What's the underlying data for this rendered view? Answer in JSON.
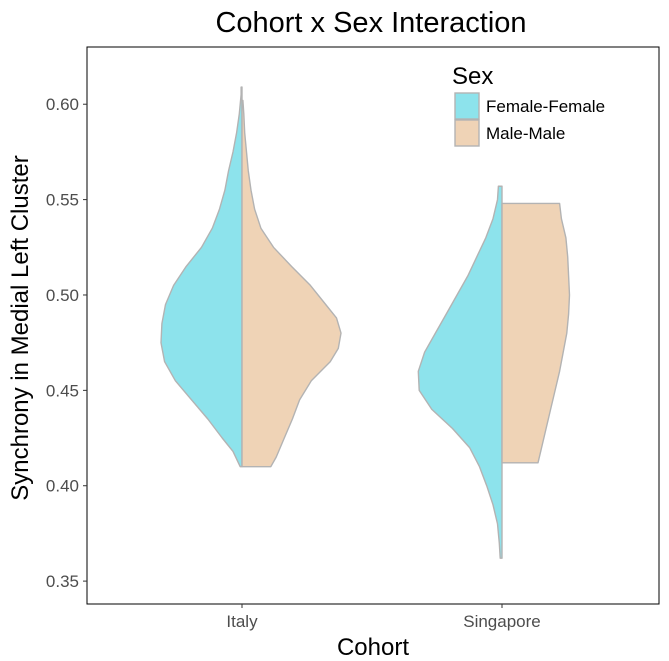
{
  "chart_data": {
    "type": "split-violin",
    "title": "Cohort x Sex Interaction",
    "xlabel": "Cohort",
    "ylabel": "Synchrony in Medial Left Cluster",
    "categories": [
      "Italy",
      "Singapore"
    ],
    "ylim": [
      0.338,
      0.63
    ],
    "yticks": [
      0.35,
      0.4,
      0.45,
      0.5,
      0.55,
      0.6
    ],
    "ytick_labels": [
      "0.35",
      "0.40",
      "0.45",
      "0.50",
      "0.55",
      "0.60"
    ],
    "grid": false,
    "legend": {
      "title": "Sex",
      "position": "top-right",
      "entries": [
        "Female-Female",
        "Male-Male"
      ]
    },
    "series": [
      {
        "name": "Female-Female",
        "color": "#8de3ec",
        "side": "left",
        "groups": [
          {
            "category": "Italy",
            "min": 0.41,
            "max": 0.609,
            "profile": [
              [
                0.41,
                0.02
              ],
              [
                0.418,
                0.1
              ],
              [
                0.425,
                0.22
              ],
              [
                0.435,
                0.38
              ],
              [
                0.445,
                0.56
              ],
              [
                0.455,
                0.74
              ],
              [
                0.465,
                0.86
              ],
              [
                0.475,
                0.9
              ],
              [
                0.485,
                0.89
              ],
              [
                0.495,
                0.85
              ],
              [
                0.505,
                0.76
              ],
              [
                0.515,
                0.62
              ],
              [
                0.525,
                0.45
              ],
              [
                0.535,
                0.33
              ],
              [
                0.545,
                0.25
              ],
              [
                0.555,
                0.19
              ],
              [
                0.565,
                0.15
              ],
              [
                0.575,
                0.1
              ],
              [
                0.585,
                0.06
              ],
              [
                0.595,
                0.03
              ],
              [
                0.605,
                0.01
              ],
              [
                0.609,
                0.01
              ]
            ]
          },
          {
            "category": "Singapore",
            "min": 0.362,
            "max": 0.557,
            "profile": [
              [
                0.362,
                0.02
              ],
              [
                0.37,
                0.03
              ],
              [
                0.38,
                0.05
              ],
              [
                0.39,
                0.1
              ],
              [
                0.4,
                0.17
              ],
              [
                0.41,
                0.25
              ],
              [
                0.42,
                0.36
              ],
              [
                0.43,
                0.55
              ],
              [
                0.44,
                0.78
              ],
              [
                0.45,
                0.92
              ],
              [
                0.46,
                0.93
              ],
              [
                0.47,
                0.86
              ],
              [
                0.48,
                0.74
              ],
              [
                0.49,
                0.62
              ],
              [
                0.5,
                0.5
              ],
              [
                0.51,
                0.38
              ],
              [
                0.52,
                0.28
              ],
              [
                0.53,
                0.18
              ],
              [
                0.54,
                0.1
              ],
              [
                0.55,
                0.05
              ],
              [
                0.557,
                0.04
              ]
            ]
          }
        ]
      },
      {
        "name": "Male-Male",
        "color": "#efd3b6",
        "side": "right",
        "groups": [
          {
            "category": "Italy",
            "min": 0.41,
            "max": 0.602,
            "profile": [
              [
                0.41,
                0.32
              ],
              [
                0.415,
                0.38
              ],
              [
                0.425,
                0.47
              ],
              [
                0.435,
                0.56
              ],
              [
                0.445,
                0.64
              ],
              [
                0.455,
                0.77
              ],
              [
                0.465,
                0.98
              ],
              [
                0.472,
                1.07
              ],
              [
                0.48,
                1.1
              ],
              [
                0.488,
                1.05
              ],
              [
                0.495,
                0.93
              ],
              [
                0.505,
                0.76
              ],
              [
                0.515,
                0.55
              ],
              [
                0.525,
                0.35
              ],
              [
                0.535,
                0.21
              ],
              [
                0.545,
                0.14
              ],
              [
                0.555,
                0.1
              ],
              [
                0.565,
                0.07
              ],
              [
                0.575,
                0.05
              ],
              [
                0.585,
                0.03
              ],
              [
                0.595,
                0.02
              ],
              [
                0.602,
                0.01
              ]
            ]
          },
          {
            "category": "Singapore",
            "min": 0.412,
            "max": 0.548,
            "profile": [
              [
                0.412,
                0.4
              ],
              [
                0.42,
                0.44
              ],
              [
                0.43,
                0.49
              ],
              [
                0.44,
                0.54
              ],
              [
                0.45,
                0.59
              ],
              [
                0.46,
                0.64
              ],
              [
                0.47,
                0.68
              ],
              [
                0.48,
                0.72
              ],
              [
                0.49,
                0.74
              ],
              [
                0.5,
                0.75
              ],
              [
                0.51,
                0.74
              ],
              [
                0.52,
                0.73
              ],
              [
                0.53,
                0.71
              ],
              [
                0.54,
                0.66
              ],
              [
                0.548,
                0.64
              ]
            ]
          }
        ]
      }
    ]
  }
}
